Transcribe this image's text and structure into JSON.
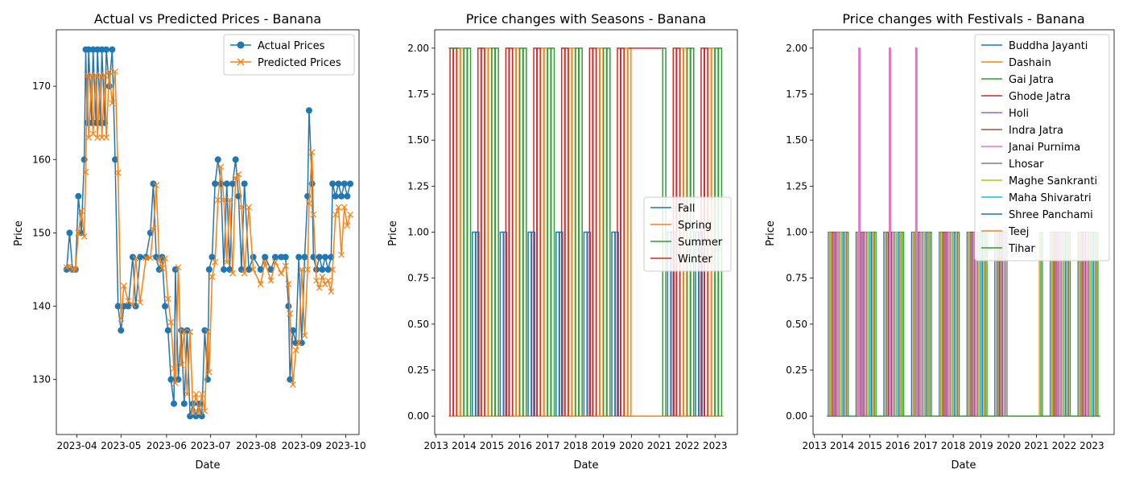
{
  "colors": {
    "blue": "#1f77b4",
    "orange": "#ff7f0e",
    "green": "#2ca02c",
    "red": "#d62728",
    "purple": "#9467bd",
    "brown": "#8c564b",
    "pink": "#e377c2",
    "gray": "#7f7f7f",
    "olive": "#bcbd22",
    "cyan": "#17becf"
  },
  "chart_data": [
    {
      "type": "line",
      "title": "Actual vs Predicted Prices - Banana",
      "xlabel": "Date",
      "ylabel": "Price",
      "xlim": [
        "2023-03-18",
        "2023-10-10"
      ],
      "ylim": [
        122.5,
        177.7
      ],
      "x_ticks": [
        "2023-04-01",
        "2023-05-01",
        "2023-06-01",
        "2023-07-01",
        "2023-08-01",
        "2023-09-01",
        "2023-10-01"
      ],
      "x_tick_labels": [
        "2023-04",
        "2023-05",
        "2023-06",
        "2023-07",
        "2023-08",
        "2023-09",
        "2023-10"
      ],
      "y_ticks": [
        130,
        140,
        150,
        160,
        170
      ],
      "y_tick_labels": [
        "130",
        "140",
        "150",
        "160",
        "170"
      ],
      "legend_position": "top-right",
      "grid": false,
      "series": [
        {
          "name": "Actual Prices",
          "marker": "circle",
          "color": "#1f77b4",
          "points": [
            [
              "2023-03-25",
              145
            ],
            [
              "2023-03-27",
              150
            ],
            [
              "2023-03-29",
              145
            ],
            [
              "2023-03-31",
              145
            ],
            [
              "2023-04-02",
              155
            ],
            [
              "2023-04-04",
              150
            ],
            [
              "2023-04-06",
              160
            ],
            [
              "2023-04-07",
              175
            ],
            [
              "2023-04-08",
              165
            ],
            [
              "2023-04-09",
              175
            ],
            [
              "2023-04-11",
              165
            ],
            [
              "2023-04-12",
              175
            ],
            [
              "2023-04-14",
              165
            ],
            [
              "2023-04-15",
              175
            ],
            [
              "2023-04-17",
              165
            ],
            [
              "2023-04-18",
              175
            ],
            [
              "2023-04-20",
              165
            ],
            [
              "2023-04-21",
              175
            ],
            [
              "2023-04-23",
              170
            ],
            [
              "2023-04-25",
              175
            ],
            [
              "2023-04-27",
              160
            ],
            [
              "2023-04-29",
              140
            ],
            [
              "2023-05-01",
              136.7
            ],
            [
              "2023-05-03",
              140
            ],
            [
              "2023-05-06",
              140
            ],
            [
              "2023-05-09",
              146.7
            ],
            [
              "2023-05-11",
              140
            ],
            [
              "2023-05-14",
              146.7
            ],
            [
              "2023-05-18",
              146.7
            ],
            [
              "2023-05-21",
              150
            ],
            [
              "2023-05-23",
              156.7
            ],
            [
              "2023-05-25",
              146.7
            ],
            [
              "2023-05-27",
              145
            ],
            [
              "2023-05-29",
              146.7
            ],
            [
              "2023-05-31",
              140
            ],
            [
              "2023-06-02",
              136.7
            ],
            [
              "2023-06-04",
              130
            ],
            [
              "2023-06-06",
              126.7
            ],
            [
              "2023-06-07",
              145
            ],
            [
              "2023-06-09",
              130
            ],
            [
              "2023-06-11",
              136.7
            ],
            [
              "2023-06-13",
              126.7
            ],
            [
              "2023-06-15",
              136.7
            ],
            [
              "2023-06-17",
              125
            ],
            [
              "2023-06-19",
              126.7
            ],
            [
              "2023-06-21",
              125
            ],
            [
              "2023-06-23",
              126.7
            ],
            [
              "2023-06-25",
              125
            ],
            [
              "2023-06-27",
              136.7
            ],
            [
              "2023-06-29",
              130
            ],
            [
              "2023-06-30",
              145
            ],
            [
              "2023-07-02",
              146.7
            ],
            [
              "2023-07-04",
              156.7
            ],
            [
              "2023-07-06",
              160
            ],
            [
              "2023-07-08",
              156.7
            ],
            [
              "2023-07-10",
              145
            ],
            [
              "2023-07-12",
              156.7
            ],
            [
              "2023-07-14",
              145
            ],
            [
              "2023-07-16",
              156.7
            ],
            [
              "2023-07-18",
              160
            ],
            [
              "2023-07-20",
              155
            ],
            [
              "2023-07-22",
              145
            ],
            [
              "2023-07-24",
              156.7
            ],
            [
              "2023-07-27",
              145
            ],
            [
              "2023-07-30",
              146.7
            ],
            [
              "2023-08-04",
              145
            ],
            [
              "2023-08-07",
              146.7
            ],
            [
              "2023-08-11",
              145
            ],
            [
              "2023-08-14",
              146.7
            ],
            [
              "2023-08-18",
              146.7
            ],
            [
              "2023-08-21",
              146.7
            ],
            [
              "2023-08-23",
              140
            ],
            [
              "2023-08-24",
              130
            ],
            [
              "2023-08-26",
              136.7
            ],
            [
              "2023-08-28",
              135
            ],
            [
              "2023-08-30",
              146.7
            ],
            [
              "2023-09-01",
              135
            ],
            [
              "2023-09-03",
              146.7
            ],
            [
              "2023-09-05",
              155
            ],
            [
              "2023-09-06",
              166.7
            ],
            [
              "2023-09-08",
              156.7
            ],
            [
              "2023-09-09",
              146.7
            ],
            [
              "2023-09-11",
              145
            ],
            [
              "2023-09-13",
              146.7
            ],
            [
              "2023-09-15",
              145
            ],
            [
              "2023-09-17",
              146.7
            ],
            [
              "2023-09-19",
              145
            ],
            [
              "2023-09-21",
              146.7
            ],
            [
              "2023-09-22",
              156.7
            ],
            [
              "2023-09-24",
              155
            ],
            [
              "2023-09-26",
              156.7
            ],
            [
              "2023-09-28",
              155
            ],
            [
              "2023-09-30",
              156.7
            ],
            [
              "2023-10-02",
              155
            ],
            [
              "2023-10-04",
              156.7
            ]
          ]
        },
        {
          "name": "Predicted Prices",
          "marker": "x",
          "color": "#ff7f0e",
          "points": [
            [
              "2023-03-25",
              145.3
            ],
            [
              "2023-03-27",
              145.5
            ],
            [
              "2023-03-29",
              145
            ],
            [
              "2023-03-31",
              145
            ],
            [
              "2023-04-02",
              150
            ],
            [
              "2023-04-04",
              153
            ],
            [
              "2023-04-06",
              149.5
            ],
            [
              "2023-04-07",
              158.3
            ],
            [
              "2023-04-08",
              171.5
            ],
            [
              "2023-04-09",
              163
            ],
            [
              "2023-04-11",
              171.5
            ],
            [
              "2023-04-12",
              163.5
            ],
            [
              "2023-04-14",
              171.5
            ],
            [
              "2023-04-15",
              163
            ],
            [
              "2023-04-17",
              171.5
            ],
            [
              "2023-04-18",
              163
            ],
            [
              "2023-04-20",
              171.5
            ],
            [
              "2023-04-21",
              163
            ],
            [
              "2023-04-23",
              172
            ],
            [
              "2023-04-25",
              167.7
            ],
            [
              "2023-04-27",
              172
            ],
            [
              "2023-04-29",
              158.2
            ],
            [
              "2023-05-01",
              138.3
            ],
            [
              "2023-05-03",
              142.8
            ],
            [
              "2023-05-06",
              140.7
            ],
            [
              "2023-05-09",
              140.2
            ],
            [
              "2023-05-11",
              146.5
            ],
            [
              "2023-05-14",
              140.5
            ],
            [
              "2023-05-18",
              146.6
            ],
            [
              "2023-05-21",
              146.6
            ],
            [
              "2023-05-23",
              150.5
            ],
            [
              "2023-05-25",
              156.5
            ],
            [
              "2023-05-27",
              146.3
            ],
            [
              "2023-05-29",
              145.2
            ],
            [
              "2023-05-31",
              146.5
            ],
            [
              "2023-06-02",
              141
            ],
            [
              "2023-06-04",
              137.8
            ],
            [
              "2023-06-06",
              131.5
            ],
            [
              "2023-06-07",
              129.5
            ],
            [
              "2023-06-09",
              145.3
            ],
            [
              "2023-06-11",
              132
            ],
            [
              "2023-06-13",
              136.5
            ],
            [
              "2023-06-15",
              128
            ],
            [
              "2023-06-17",
              136.5
            ],
            [
              "2023-06-19",
              125.5
            ],
            [
              "2023-06-21",
              128
            ],
            [
              "2023-06-23",
              125.5
            ],
            [
              "2023-06-25",
              128
            ],
            [
              "2023-06-27",
              125.7
            ],
            [
              "2023-06-29",
              136.5
            ],
            [
              "2023-06-30",
              131
            ],
            [
              "2023-07-02",
              144
            ],
            [
              "2023-07-04",
              146
            ],
            [
              "2023-07-06",
              154.5
            ],
            [
              "2023-07-08",
              159
            ],
            [
              "2023-07-10",
              154.5
            ],
            [
              "2023-07-12",
              146
            ],
            [
              "2023-07-14",
              154.5
            ],
            [
              "2023-07-16",
              144.5
            ],
            [
              "2023-07-18",
              157.5
            ],
            [
              "2023-07-20",
              158
            ],
            [
              "2023-07-22",
              153.5
            ],
            [
              "2023-07-24",
              144.5
            ],
            [
              "2023-07-27",
              153.5
            ],
            [
              "2023-07-30",
              145
            ],
            [
              "2023-08-04",
              143
            ],
            [
              "2023-08-07",
              146
            ],
            [
              "2023-08-11",
              143.5
            ],
            [
              "2023-08-14",
              146
            ],
            [
              "2023-08-18",
              144.5
            ],
            [
              "2023-08-21",
              145.5
            ],
            [
              "2023-08-23",
              143
            ],
            [
              "2023-08-24",
              139
            ],
            [
              "2023-08-26",
              129.3
            ],
            [
              "2023-08-28",
              134
            ],
            [
              "2023-08-30",
              135
            ],
            [
              "2023-09-01",
              145
            ],
            [
              "2023-09-03",
              136
            ],
            [
              "2023-09-05",
              145
            ],
            [
              "2023-09-06",
              154
            ],
            [
              "2023-09-08",
              161
            ],
            [
              "2023-09-09",
              152.5
            ],
            [
              "2023-09-11",
              143.5
            ],
            [
              "2023-09-13",
              142.5
            ],
            [
              "2023-09-15",
              144
            ],
            [
              "2023-09-17",
              143
            ],
            [
              "2023-09-19",
              143.5
            ],
            [
              "2023-09-21",
              142
            ],
            [
              "2023-09-22",
              145
            ],
            [
              "2023-09-24",
              152.5
            ],
            [
              "2023-09-26",
              153.5
            ],
            [
              "2023-09-28",
              147
            ],
            [
              "2023-09-30",
              153.5
            ],
            [
              "2023-10-02",
              151
            ],
            [
              "2023-10-04",
              152.5
            ]
          ]
        }
      ]
    },
    {
      "type": "line",
      "title": "Price changes with Seasons - Banana",
      "xlabel": "Date",
      "ylabel": "Price",
      "xlim": [
        2012.95,
        2023.8
      ],
      "ylim": [
        -0.1,
        2.1
      ],
      "x_ticks": [
        2013,
        2014,
        2015,
        2016,
        2017,
        2018,
        2019,
        2020,
        2021,
        2022,
        2023
      ],
      "x_tick_labels": [
        "2013",
        "2014",
        "2015",
        "2016",
        "2017",
        "2018",
        "2019",
        "2020",
        "2021",
        "2022",
        "2023"
      ],
      "y_ticks": [
        0,
        0.25,
        0.5,
        0.75,
        1,
        1.25,
        1.5,
        1.75,
        2
      ],
      "y_tick_labels": [
        "0.00",
        "0.25",
        "0.50",
        "0.75",
        "1.00",
        "1.25",
        "1.50",
        "1.75",
        "2.00"
      ],
      "legend_position": "center-right",
      "grid": false,
      "data_start": 2013.45,
      "data_end": 2023.3,
      "gap": [
        2019.9,
        2021.1
      ],
      "series": [
        {
          "name": "Fall",
          "color": "#1f77b4",
          "level": 1
        },
        {
          "name": "Spring",
          "color": "#ff7f0e",
          "level": 2
        },
        {
          "name": "Summer",
          "color": "#2ca02c",
          "level": 2
        },
        {
          "name": "Winter",
          "color": "#d62728",
          "level": 2
        }
      ]
    },
    {
      "type": "line",
      "title": "Price changes with Festivals - Banana",
      "xlabel": "Date",
      "ylabel": "Price",
      "xlim": [
        2012.95,
        2023.8
      ],
      "ylim": [
        -0.1,
        2.1
      ],
      "x_ticks": [
        2013,
        2014,
        2015,
        2016,
        2017,
        2018,
        2019,
        2020,
        2021,
        2022,
        2023
      ],
      "x_tick_labels": [
        "2013",
        "2014",
        "2015",
        "2016",
        "2017",
        "2018",
        "2019",
        "2020",
        "2021",
        "2022",
        "2023"
      ],
      "y_ticks": [
        0,
        0.25,
        0.5,
        0.75,
        1,
        1.25,
        1.5,
        1.75,
        2
      ],
      "y_tick_labels": [
        "0.00",
        "0.25",
        "0.50",
        "0.75",
        "1.00",
        "1.25",
        "1.50",
        "1.75",
        "2.00"
      ],
      "legend_position": "top-right",
      "grid": false,
      "data_start": 2013.45,
      "data_end": 2023.3,
      "gap": [
        2019.9,
        2021.1
      ],
      "spikes_level_2": [
        {
          "series": "Janai Purnima",
          "x": [
            2014.6,
            2015.7,
            2016.65
          ]
        }
      ],
      "series": [
        {
          "name": "Buddha Jayanti",
          "color": "#1f77b4"
        },
        {
          "name": "Dashain",
          "color": "#ff7f0e"
        },
        {
          "name": "Gai Jatra",
          "color": "#2ca02c"
        },
        {
          "name": "Ghode Jatra",
          "color": "#d62728"
        },
        {
          "name": "Holi",
          "color": "#9467bd"
        },
        {
          "name": "Indra Jatra",
          "color": "#8c564b"
        },
        {
          "name": "Janai Purnima",
          "color": "#e377c2"
        },
        {
          "name": "Lhosar",
          "color": "#7f7f7f"
        },
        {
          "name": "Maghe Sankranti",
          "color": "#bcbd22"
        },
        {
          "name": "Maha Shivaratri",
          "color": "#17becf"
        },
        {
          "name": "Shree Panchami",
          "color": "#1f77b4"
        },
        {
          "name": "Teej",
          "color": "#ff7f0e"
        },
        {
          "name": "Tihar",
          "color": "#2ca02c"
        }
      ]
    }
  ]
}
